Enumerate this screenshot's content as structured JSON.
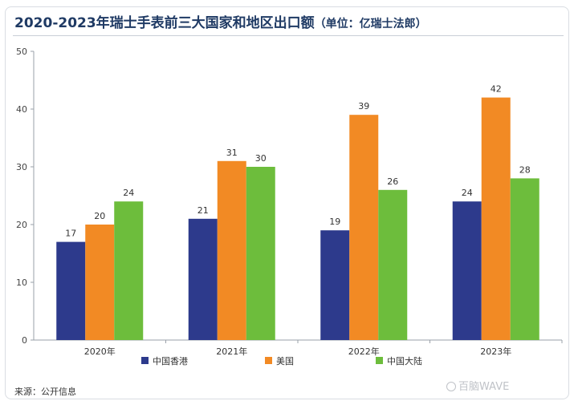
{
  "title": "2020-2023年瑞士手表前三大国家和地区出口额",
  "title_unit": "（单位：亿瑞士法郎）",
  "source": "来源：公开信息",
  "watermark": "百脑WAVE",
  "chart_data": {
    "type": "bar",
    "title": "2020-2023年瑞士手表前三大国家和地区出口额（单位：亿瑞士法郎）",
    "categories": [
      "2020年",
      "2021年",
      "2022年",
      "2023年"
    ],
    "series": [
      {
        "name": "中国香港",
        "color": "#2d3a8c",
        "values": [
          17,
          21,
          19,
          24
        ]
      },
      {
        "name": "美国",
        "color": "#f28a24",
        "values": [
          20,
          31,
          39,
          42
        ]
      },
      {
        "name": "中国大陆",
        "color": "#6dbd3c",
        "values": [
          24,
          30,
          26,
          28
        ]
      }
    ],
    "ylim": [
      0,
      50
    ],
    "yticks": [
      0,
      10,
      20,
      30,
      40,
      50
    ],
    "legend": "bottom",
    "grid": false
  }
}
